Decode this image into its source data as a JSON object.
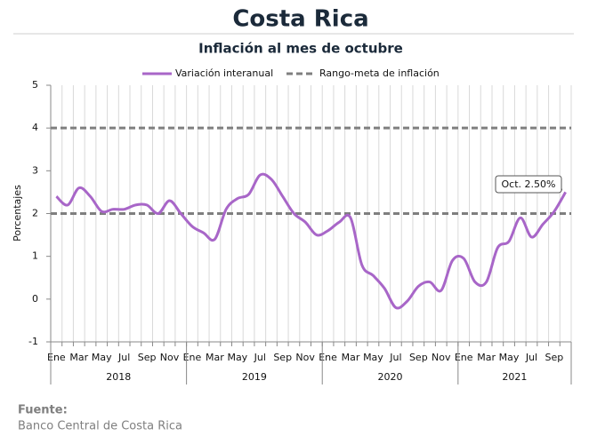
{
  "chart_data": {
    "type": "line",
    "title": "Costa Rica",
    "subtitle": "Inflación al mes de octubre",
    "y_label": "Porcentajes",
    "categories": [
      "Ene",
      null,
      "Mar",
      null,
      "May",
      null,
      "Jul",
      null,
      "Sep",
      null,
      "Nov",
      null,
      "Ene",
      null,
      "Mar",
      null,
      "May",
      null,
      "Jul",
      null,
      "Sep",
      null,
      "Nov",
      null,
      "Ene",
      null,
      "Mar",
      null,
      "May",
      null,
      "Jul",
      null,
      "Sep",
      null,
      "Nov",
      null,
      "Ene",
      null,
      "Mar",
      null,
      "May",
      null,
      "Jul",
      null,
      "Sep",
      null
    ],
    "years": [
      "2018",
      "2019",
      "2020",
      "2021"
    ],
    "series": [
      {
        "name": "Variación interanual",
        "color": "#a866c8",
        "values": [
          2.4,
          2.2,
          2.6,
          2.4,
          2.05,
          2.1,
          2.1,
          2.2,
          2.2,
          2.0,
          2.3,
          2.0,
          1.7,
          1.55,
          1.4,
          2.1,
          2.35,
          2.45,
          2.9,
          2.8,
          2.4,
          2.0,
          1.8,
          1.5,
          1.6,
          1.8,
          1.9,
          0.8,
          0.55,
          0.25,
          -0.2,
          -0.05,
          0.3,
          0.4,
          0.2,
          0.9,
          0.95,
          0.4,
          0.4,
          1.2,
          1.35,
          1.9,
          1.45,
          1.75,
          2.05,
          2.5
        ]
      }
    ],
    "reference_lines": {
      "name": "Rango-meta de inflación",
      "color": "#7f7f7f",
      "values": [
        2,
        4
      ]
    },
    "annotation": {
      "text": "Oct. 2.50%"
    },
    "ylim": [
      -1,
      5
    ],
    "yticks": [
      -1,
      0,
      1,
      2,
      3,
      4,
      5
    ],
    "source": {
      "label": "Fuente:",
      "text": "Banco Central de Costa Rica"
    }
  }
}
